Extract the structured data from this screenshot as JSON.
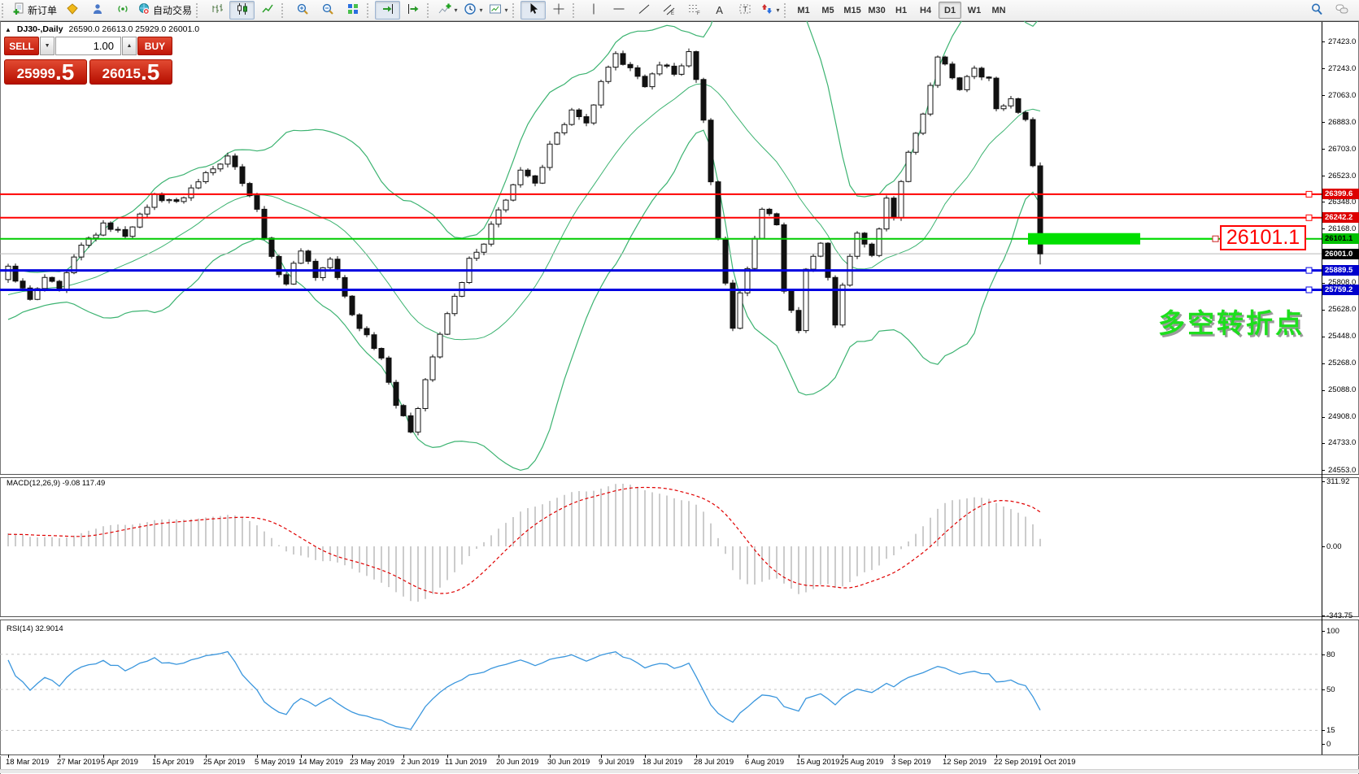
{
  "toolbar": {
    "new_order_label": "新订单",
    "autotrade_label": "自动交易",
    "timeframes": [
      "M1",
      "M5",
      "M15",
      "M30",
      "H1",
      "H4",
      "D1",
      "W1",
      "MN"
    ],
    "active_timeframe": "D1",
    "glyphs": {
      "caret": "▾",
      "channel_letter": "E",
      "fibo_letter": "F",
      "text_tool": "A",
      "label_tool": "T"
    }
  },
  "symbol_bar": {
    "collapse_icon": "▲",
    "title": "DJ30-,Daily",
    "ohlc": "26590.0 26613.0 25929.0 26001.0"
  },
  "trade_panel": {
    "sell_label": "SELL",
    "buy_label": "BUY",
    "volume": "1.00",
    "sell_price_int": "25999",
    "sell_price_frac": ".5",
    "buy_price_int": "26015",
    "buy_price_frac": ".5",
    "spinner_up": "▲",
    "spinner_down": "▼"
  },
  "price_axis": {
    "ticks": [
      "27423.0",
      "27243.0",
      "27063.0",
      "26883.0",
      "26703.0",
      "26523.0",
      "26348.0",
      "26168.0",
      "25808.0",
      "25628.0",
      "25448.0",
      "25268.0",
      "25088.0",
      "24908.0",
      "24733.0",
      "24553.0"
    ]
  },
  "levels": [
    {
      "value": "26399.6",
      "price": 26399.6,
      "color": "#dd0000",
      "text_color": "#ffffff",
      "line_color": "#ff0000",
      "line_width": 2,
      "handle": true
    },
    {
      "value": "26242.2",
      "price": 26242.2,
      "color": "#dd0000",
      "text_color": "#ffffff",
      "line_color": "#ff0000",
      "line_width": 2,
      "handle": true
    },
    {
      "value": "26101.1",
      "price": 26101.1,
      "color": "#00c000",
      "text_color": "#000000",
      "line_color": "#00cc00",
      "line_width": 2,
      "handle": false
    },
    {
      "value": "26001.0",
      "price": 26001.0,
      "color": "#000000",
      "text_color": "#ffffff",
      "line_color": "#b8b8b8",
      "line_width": 1,
      "handle": false
    },
    {
      "value": "25889.5",
      "price": 25889.5,
      "color": "#0000cc",
      "text_color": "#ffffff",
      "line_color": "#0000e0",
      "line_width": 3,
      "handle": true
    },
    {
      "value": "25759.2",
      "price": 25759.2,
      "color": "#0000cc",
      "text_color": "#ffffff",
      "line_color": "#0000e0",
      "line_width": 3,
      "handle": true
    }
  ],
  "highlight": {
    "label": "26101.1",
    "price": 26101.1,
    "color": "#00df00"
  },
  "annotation": {
    "text": "多空转折点",
    "color": "#1ddf1d"
  },
  "macd_panel": {
    "label": "MACD(12,26,9) -9.08 117.49",
    "axis": [
      "311.92",
      "0.00",
      "-343.75"
    ]
  },
  "rsi_panel": {
    "label": "RSI(14) 32.9014",
    "axis": [
      {
        "v": "100",
        "p": 100
      },
      {
        "v": "80",
        "p": 80
      },
      {
        "v": "50",
        "p": 50
      },
      {
        "v": "15",
        "p": 15
      },
      {
        "v": "0",
        "p": 0
      }
    ],
    "levels": [
      80,
      50,
      15
    ]
  },
  "date_axis": {
    "labels": [
      [
        "18 Mar 2019",
        0
      ],
      [
        "27 Mar 2019",
        7
      ],
      [
        "5 Apr 2019",
        13
      ],
      [
        "15 Apr 2019",
        20
      ],
      [
        "25 Apr 2019",
        27
      ],
      [
        "5 May 2019",
        34
      ],
      [
        "14 May 2019",
        40
      ],
      [
        "23 May 2019",
        47
      ],
      [
        "2 Jun 2019",
        54
      ],
      [
        "11 Jun 2019",
        60
      ],
      [
        "20 Jun 2019",
        67
      ],
      [
        "30 Jun 2019",
        74
      ],
      [
        "9 Jul 2019",
        81
      ],
      [
        "18 Jul 2019",
        87
      ],
      [
        "28 Jul 2019",
        94
      ],
      [
        "6 Aug 2019",
        101
      ],
      [
        "15 Aug 2019",
        108
      ],
      [
        "25 Aug 2019",
        114
      ],
      [
        "3 Sep 2019",
        121
      ],
      [
        "12 Sep 2019",
        128
      ],
      [
        "22 Sep 2019",
        135
      ],
      [
        "1 Oct 2019",
        141
      ]
    ]
  },
  "chart_data": {
    "type": "candlestick",
    "symbol": "DJ30",
    "period": "Daily",
    "title": "DJ30-,Daily",
    "bid": 25999.5,
    "ask": 26015.5,
    "last_candle": {
      "open": 26590.0,
      "high": 26613.0,
      "low": 25929.0,
      "close": 26001.0
    },
    "visible_candles": 142,
    "price_range": [
      24553.0,
      27423.0
    ],
    "indicators": [
      "Bollinger Bands(20,2)",
      "MACD(12,26,9)",
      "RSI(14)"
    ],
    "pre_waypoints": [
      [
        -40,
        25450
      ],
      [
        -32,
        25600
      ],
      [
        -24,
        25400
      ],
      [
        -16,
        25650
      ],
      [
        -8,
        25800
      ],
      [
        -4,
        25700
      ]
    ],
    "waypoints": [
      [
        0,
        25900
      ],
      [
        3,
        25680
      ],
      [
        5,
        25850
      ],
      [
        7,
        25750
      ],
      [
        10,
        26050
      ],
      [
        13,
        26200
      ],
      [
        16,
        26120
      ],
      [
        20,
        26400
      ],
      [
        23,
        26330
      ],
      [
        27,
        26550
      ],
      [
        30,
        26650
      ],
      [
        32,
        26500
      ],
      [
        34,
        26300
      ],
      [
        36,
        25950
      ],
      [
        38,
        25800
      ],
      [
        40,
        26050
      ],
      [
        42,
        25850
      ],
      [
        44,
        25950
      ],
      [
        47,
        25600
      ],
      [
        49,
        25450
      ],
      [
        51,
        25300
      ],
      [
        53,
        25000
      ],
      [
        55,
        24820
      ],
      [
        57,
        25150
      ],
      [
        60,
        25600
      ],
      [
        63,
        25950
      ],
      [
        65,
        26050
      ],
      [
        67,
        26300
      ],
      [
        70,
        26550
      ],
      [
        72,
        26450
      ],
      [
        74,
        26750
      ],
      [
        77,
        26950
      ],
      [
        79,
        26850
      ],
      [
        81,
        27150
      ],
      [
        83,
        27330
      ],
      [
        85,
        27250
      ],
      [
        87,
        27100
      ],
      [
        89,
        27300
      ],
      [
        91,
        27200
      ],
      [
        93,
        27330
      ],
      [
        94,
        27150
      ],
      [
        95,
        26900
      ],
      [
        96,
        26500
      ],
      [
        97,
        26100
      ],
      [
        98,
        25800
      ],
      [
        99,
        25500
      ],
      [
        100,
        25720
      ],
      [
        102,
        26100
      ],
      [
        103,
        26330
      ],
      [
        105,
        26200
      ],
      [
        106,
        25750
      ],
      [
        108,
        25480
      ],
      [
        109,
        25900
      ],
      [
        111,
        26100
      ],
      [
        112,
        25850
      ],
      [
        113,
        25500
      ],
      [
        114,
        25800
      ],
      [
        116,
        26150
      ],
      [
        118,
        26000
      ],
      [
        120,
        26350
      ],
      [
        121,
        26250
      ],
      [
        123,
        26700
      ],
      [
        125,
        26950
      ],
      [
        127,
        27300
      ],
      [
        128,
        27250
      ],
      [
        130,
        27100
      ],
      [
        132,
        27250
      ],
      [
        134,
        27150
      ],
      [
        135,
        26950
      ],
      [
        137,
        27050
      ],
      [
        139,
        26900
      ],
      [
        140,
        26590
      ],
      [
        141,
        26001
      ]
    ]
  }
}
